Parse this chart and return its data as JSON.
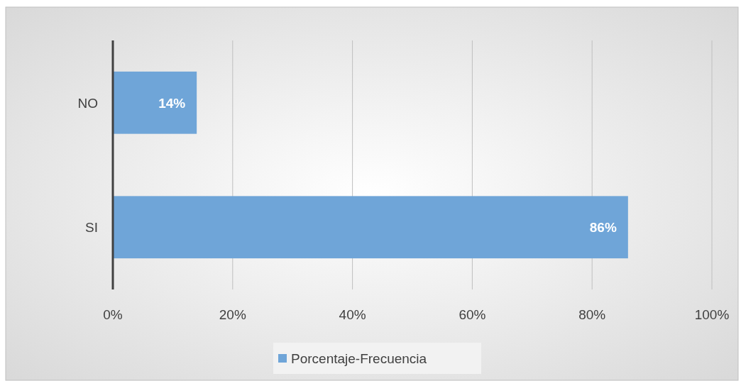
{
  "chart_data": {
    "type": "bar",
    "orientation": "horizontal",
    "categories": [
      "NO",
      "SI"
    ],
    "series": [
      {
        "name": "Porcentaje-Frecuencia",
        "color": "#6fa5d8",
        "values": [
          14,
          86
        ],
        "value_labels": [
          "14%",
          "86%"
        ]
      }
    ],
    "xlim": [
      0,
      100
    ],
    "xticks": [
      {
        "value": 0,
        "label": "0%"
      },
      {
        "value": 20,
        "label": "20%"
      },
      {
        "value": 40,
        "label": "40%"
      },
      {
        "value": 60,
        "label": "60%"
      },
      {
        "value": 80,
        "label": "80%"
      },
      {
        "value": 100,
        "label": "100%"
      }
    ],
    "grid": "x",
    "legend": "bottom"
  }
}
